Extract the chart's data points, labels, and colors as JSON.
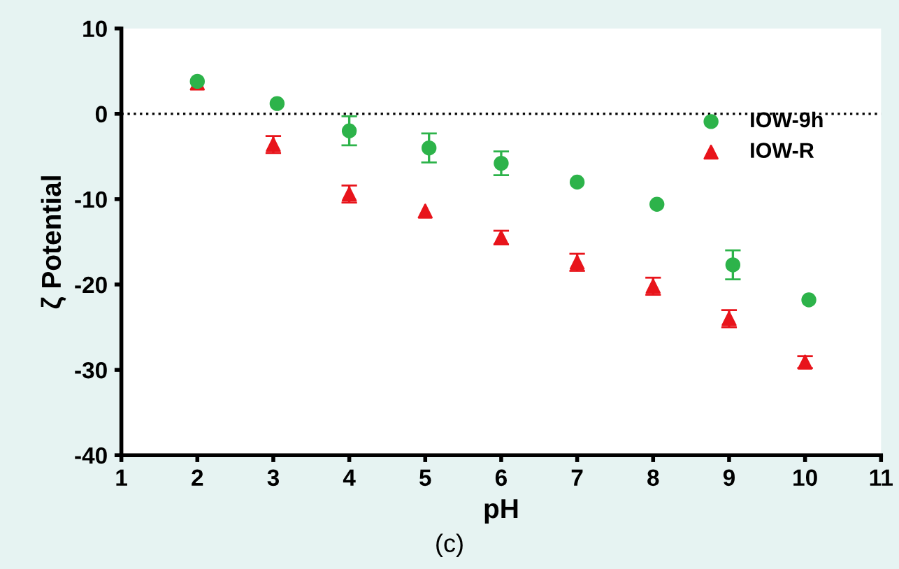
{
  "chart_data": {
    "type": "scatter",
    "xlabel": "pH",
    "ylabel": "ζ Potential",
    "xlim": [
      1,
      11
    ],
    "xticks": [
      1,
      2,
      3,
      4,
      5,
      6,
      7,
      8,
      9,
      10,
      11
    ],
    "ylim": [
      -40,
      10
    ],
    "yticks": [
      -40,
      -30,
      -20,
      -10,
      0,
      10
    ],
    "grid": false,
    "legend": "top right",
    "ref_lines": [
      {
        "axis": "y",
        "value": 0,
        "color": "#000000",
        "line_style": "dotted"
      }
    ],
    "annotations": [
      "(c)"
    ],
    "series": [
      {
        "name": "IOW-9h",
        "color": "#2db34a",
        "marker": "circle",
        "x": [
          2,
          3.05,
          4,
          5.05,
          6,
          7,
          8.05,
          9.05,
          10.05
        ],
        "values": [
          3.8,
          1.2,
          -2.0,
          -4.0,
          -5.8,
          -8.0,
          -10.6,
          -17.7,
          -21.8
        ],
        "errors": [
          null,
          null,
          1.7,
          1.7,
          1.4,
          null,
          null,
          1.7,
          null
        ]
      },
      {
        "name": "IOW-R",
        "color": "#e8141b",
        "marker": "triangle",
        "x": [
          2,
          3,
          4,
          5,
          6,
          7,
          8,
          9,
          10
        ],
        "values": [
          3.6,
          -3.6,
          -9.4,
          -11.4,
          -14.5,
          -17.4,
          -20.2,
          -24.0,
          -29.1
        ],
        "errors": [
          null,
          1.0,
          1.0,
          null,
          0.8,
          1.0,
          1.0,
          1.0,
          0.7
        ]
      }
    ]
  }
}
